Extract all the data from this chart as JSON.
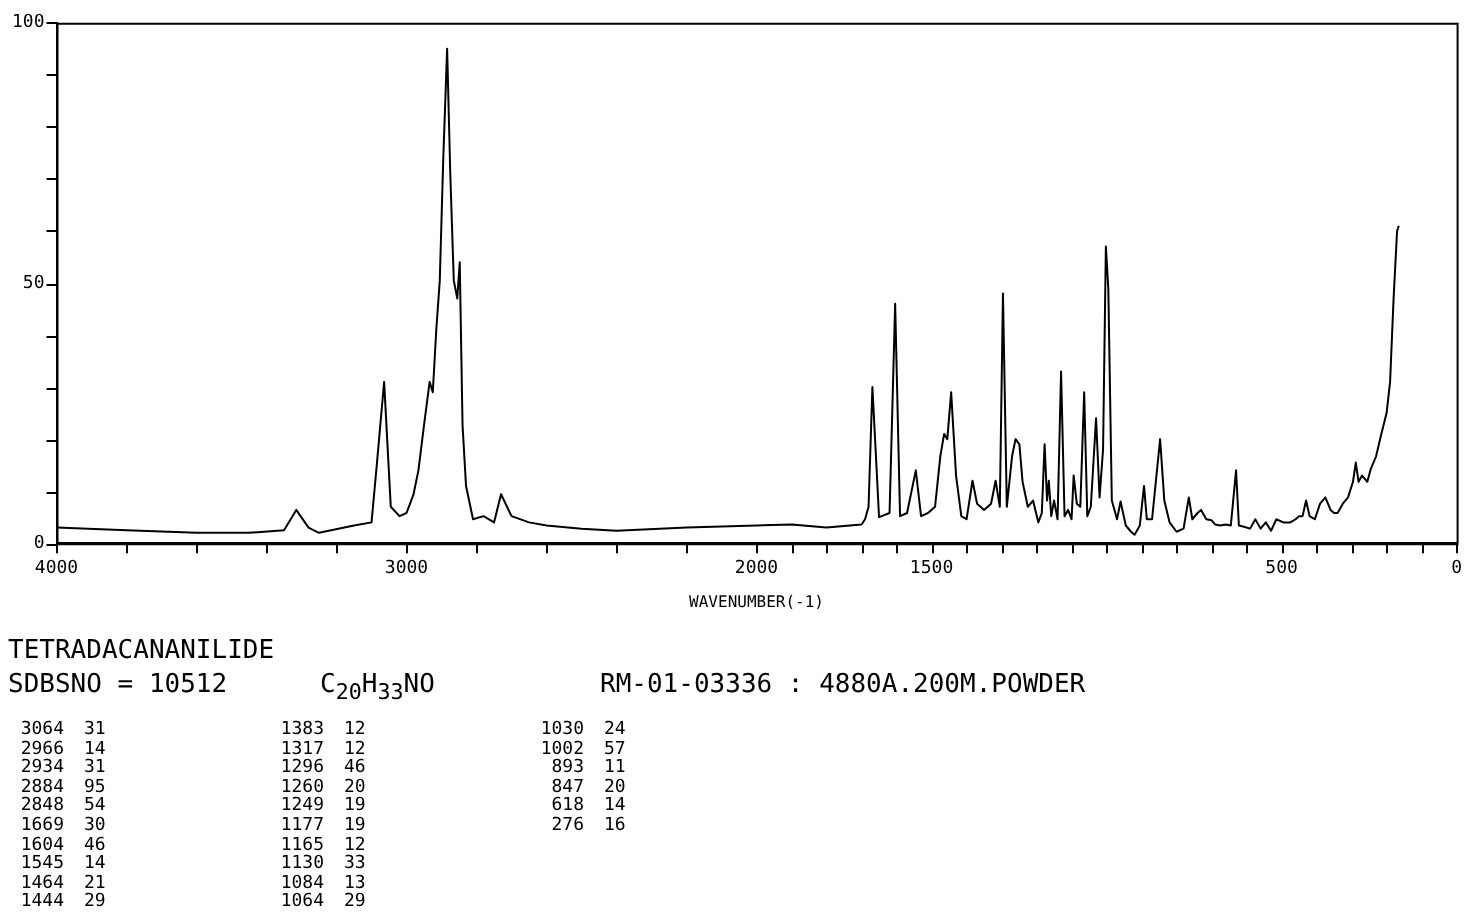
{
  "chart_data": {
    "type": "line",
    "xlabel": "WAVENUMBER(-1)",
    "color": "#000000",
    "grid": false,
    "legend": false,
    "marker": "none",
    "line_style": "solid",
    "xlim": [
      4000,
      0
    ],
    "xticks": [
      4000,
      {
        "value": 3800,
        "label": null
      },
      {
        "value": 3600,
        "label": null
      },
      {
        "value": 3400,
        "label": null
      },
      {
        "value": 3200,
        "label": null
      },
      3000,
      {
        "value": 2800,
        "label": null
      },
      {
        "value": 2600,
        "label": null
      },
      {
        "value": 2400,
        "label": null
      },
      {
        "value": 2200,
        "label": null
      },
      2000,
      {
        "value": 1900,
        "label": null
      },
      {
        "value": 1800,
        "label": null
      },
      {
        "value": 1700,
        "label": null
      },
      {
        "value": 1600,
        "label": null
      },
      1500,
      {
        "value": 1400,
        "label": null
      },
      {
        "value": 1300,
        "label": null
      },
      {
        "value": 1200,
        "label": null
      },
      {
        "value": 1100,
        "label": null
      },
      {
        "value": 1000,
        "label": null
      },
      {
        "value": 900,
        "label": null
      },
      {
        "value": 800,
        "label": null
      },
      {
        "value": 700,
        "label": null
      },
      {
        "value": 600,
        "label": null
      },
      500,
      {
        "value": 400,
        "label": null
      },
      {
        "value": 300,
        "label": null
      },
      {
        "value": 200,
        "label": null
      },
      {
        "value": 100,
        "label": null
      },
      0
    ],
    "ylim": [
      0,
      100
    ],
    "yticks": [
      0,
      {
        "value": 10,
        "label": null
      },
      {
        "value": 20,
        "label": null
      },
      {
        "value": 30,
        "label": null
      },
      {
        "value": 40,
        "label": null
      },
      50,
      {
        "value": 60,
        "label": null
      },
      {
        "value": 70,
        "label": null
      },
      {
        "value": 80,
        "label": null
      },
      {
        "value": 90,
        "label": null
      },
      100
    ],
    "x": [
      4000,
      3800,
      3600,
      3450,
      3350,
      3315,
      3280,
      3250,
      3150,
      3100,
      3085,
      3064,
      3045,
      3020,
      3000,
      2980,
      2966,
      2950,
      2934,
      2925,
      2915,
      2905,
      2895,
      2884,
      2875,
      2865,
      2855,
      2848,
      2840,
      2830,
      2810,
      2780,
      2750,
      2730,
      2700,
      2650,
      2600,
      2500,
      2400,
      2200,
      2000,
      1900,
      1800,
      1700,
      1690,
      1680,
      1669,
      1650,
      1620,
      1604,
      1590,
      1570,
      1545,
      1530,
      1510,
      1490,
      1475,
      1464,
      1455,
      1444,
      1430,
      1415,
      1400,
      1383,
      1370,
      1350,
      1330,
      1317,
      1305,
      1296,
      1285,
      1270,
      1260,
      1249,
      1240,
      1225,
      1210,
      1195,
      1185,
      1177,
      1170,
      1165,
      1158,
      1150,
      1140,
      1130,
      1120,
      1110,
      1100,
      1094,
      1085,
      1075,
      1064,
      1055,
      1045,
      1030,
      1020,
      1010,
      1002,
      995,
      985,
      970,
      960,
      945,
      930,
      920,
      905,
      893,
      885,
      870,
      847,
      835,
      820,
      800,
      780,
      765,
      755,
      740,
      730,
      715,
      700,
      690,
      675,
      660,
      645,
      630,
      622,
      610,
      590,
      575,
      560,
      545,
      530,
      515,
      495,
      475,
      460,
      450,
      440,
      430,
      420,
      405,
      390,
      375,
      360,
      350,
      340,
      325,
      310,
      296,
      288,
      280,
      270,
      255,
      245,
      230,
      215,
      200,
      190,
      180,
      170,
      165
    ],
    "values": [
      3,
      2.5,
      2,
      2,
      2.5,
      6.4,
      3,
      2,
      3.4,
      4,
      15,
      31,
      7,
      5.2,
      5.8,
      9.4,
      14,
      22.7,
      31,
      29,
      41,
      50.5,
      74,
      95,
      71,
      50.5,
      47,
      54,
      22.7,
      11,
      4.6,
      5.2,
      4,
      9.4,
      5.2,
      4,
      3.4,
      2.8,
      2.4,
      3,
      3.4,
      3.6,
      3,
      3.6,
      4.6,
      7,
      30,
      5,
      5.8,
      46,
      5.2,
      5.8,
      14,
      5.2,
      5.8,
      7,
      16.7,
      21,
      20,
      29,
      13,
      5.2,
      4.6,
      12,
      7.6,
      6.4,
      7.6,
      12,
      7,
      48,
      7,
      16.7,
      20,
      19,
      11.8,
      7,
      8.2,
      4,
      5.8,
      19,
      8.2,
      12,
      5.2,
      8.2,
      4.6,
      33,
      5.2,
      6.4,
      4.6,
      13,
      7.6,
      7,
      29,
      5.2,
      7,
      24,
      8.8,
      18,
      57,
      49,
      8.2,
      4.6,
      8,
      3.4,
      2.2,
      1.6,
      3.4,
      11,
      4.6,
      4.6,
      20,
      8.2,
      4,
      2.2,
      2.8,
      8.8,
      4.6,
      5.8,
      6.4,
      4.6,
      4.4,
      3.6,
      3.4,
      3.6,
      3.4,
      14,
      3.4,
      3.2,
      2.8,
      4.6,
      2.8,
      4,
      2.4,
      4.6,
      4,
      4,
      4.6,
      5.2,
      5.2,
      8.2,
      5.2,
      4.6,
      7.6,
      8.8,
      6.4,
      5.8,
      5.8,
      7.6,
      8.8,
      11.8,
      15.5,
      11.8,
      13,
      11.8,
      14.3,
      16.7,
      21,
      25,
      31,
      47,
      60,
      61
    ],
    "annotations": [
      "TETRADACANANILIDE",
      "SDBSNO = 10512",
      "C$_{20}$H$_{33}$NO",
      "RM-01-03336 : 4880A.200M.POWDER",
      "3064 31",
      "2966 14",
      "2934 31",
      "2884 95",
      "2848 54",
      "1669 30",
      "1604 46",
      "1545 14",
      "1464 21",
      "1444 29",
      "1383 12",
      "1317 12",
      "1296 46",
      "1260 20",
      "1249 19",
      "1177 19",
      "1165 12",
      "1130 33",
      "1084 13",
      "1064 29",
      "1030 24",
      "1002 57",
      "893 11",
      "847 20",
      "618 14",
      "276 16"
    ]
  }
}
